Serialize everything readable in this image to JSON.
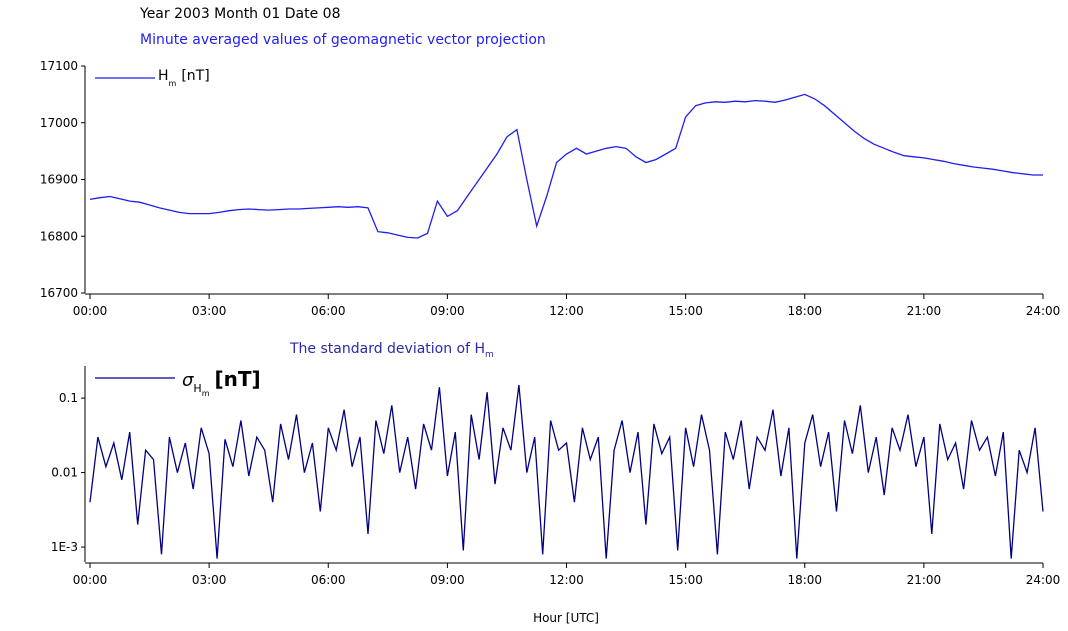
{
  "chart_data": [
    {
      "type": "line",
      "title": "Year 2003 Month 01 Date 08",
      "subtitle": "Minute averaged values of geomagnetic vector projection",
      "x": [
        0,
        0.25,
        0.5,
        0.75,
        1,
        1.25,
        1.5,
        1.75,
        2,
        2.25,
        2.5,
        2.75,
        3,
        3.25,
        3.5,
        3.75,
        4,
        4.25,
        4.5,
        4.75,
        5,
        5.25,
        5.5,
        5.75,
        6,
        6.25,
        6.5,
        6.75,
        7,
        7.25,
        7.5,
        7.75,
        8,
        8.25,
        8.5,
        8.75,
        9,
        9.25,
        9.5,
        9.75,
        10,
        10.25,
        10.5,
        10.75,
        11,
        11.25,
        11.5,
        11.75,
        12,
        12.25,
        12.5,
        12.75,
        13,
        13.25,
        13.5,
        13.75,
        14,
        14.25,
        14.5,
        14.75,
        15,
        15.25,
        15.5,
        15.75,
        16,
        16.25,
        16.5,
        16.75,
        17,
        17.25,
        17.5,
        17.75,
        18,
        18.25,
        18.5,
        18.75,
        19,
        19.25,
        19.5,
        19.75,
        20,
        20.25,
        20.5,
        20.75,
        21,
        21.25,
        21.5,
        21.75,
        22,
        22.25,
        22.5,
        22.75,
        23,
        23.25,
        23.5,
        23.75,
        24
      ],
      "series": [
        {
          "name": "H",
          "name_subscript": "m",
          "unit": "[nT]",
          "color": "#1f1ff0",
          "values": [
            16865,
            16868,
            16870,
            16866,
            16862,
            16860,
            16855,
            16850,
            16846,
            16842,
            16840,
            16840,
            16840,
            16842,
            16845,
            16847,
            16848,
            16847,
            16846,
            16847,
            16848,
            16848,
            16849,
            16850,
            16851,
            16852,
            16851,
            16852,
            16850,
            16808,
            16806,
            16802,
            16798,
            16797,
            16805,
            16862,
            16835,
            16845,
            16870,
            16895,
            16920,
            16945,
            16975,
            16988,
            16900,
            16818,
            16870,
            16930,
            16945,
            16955,
            16945,
            16950,
            16955,
            16958,
            16955,
            16940,
            16930,
            16935,
            16945,
            16955,
            17010,
            17030,
            17035,
            17037,
            17036,
            17038,
            17037,
            17039,
            17038,
            17036,
            17040,
            17045,
            17050,
            17042,
            17030,
            17015,
            17000,
            16985,
            16972,
            16962,
            16955,
            16948,
            16942,
            16940,
            16938,
            16935,
            16932,
            16928,
            16925,
            16922,
            16920,
            16918,
            16915,
            16912,
            16910,
            16908,
            16908
          ]
        }
      ],
      "xlim": [
        0,
        24
      ],
      "xticks": [
        {
          "value": 0,
          "label": "00:00"
        },
        {
          "value": 3,
          "label": "03:00"
        },
        {
          "value": 6,
          "label": "06:00"
        },
        {
          "value": 9,
          "label": "09:00"
        },
        {
          "value": 12,
          "label": "12:00"
        },
        {
          "value": 15,
          "label": "15:00"
        },
        {
          "value": 18,
          "label": "18:00"
        },
        {
          "value": 21,
          "label": "21:00"
        },
        {
          "value": 24,
          "label": "24:00"
        }
      ],
      "ylim": [
        16700,
        17100
      ],
      "yticks": [
        16700,
        16800,
        16900,
        17000,
        17100
      ],
      "log_scale": false
    },
    {
      "type": "line",
      "subtitle": "The standard deviation of H",
      "subtitle_subscript": "m",
      "xlabel": "Hour [UTC]",
      "x": [
        0,
        0.2,
        0.4,
        0.6,
        0.8,
        1,
        1.2,
        1.4,
        1.6,
        1.8,
        2,
        2.2,
        2.4,
        2.6,
        2.8,
        3,
        3.2,
        3.4,
        3.6,
        3.8,
        4,
        4.2,
        4.4,
        4.6,
        4.8,
        5,
        5.2,
        5.4,
        5.6,
        5.8,
        6,
        6.2,
        6.4,
        6.6,
        6.8,
        7,
        7.2,
        7.4,
        7.6,
        7.8,
        8,
        8.2,
        8.4,
        8.6,
        8.8,
        9,
        9.2,
        9.4,
        9.6,
        9.8,
        10,
        10.2,
        10.4,
        10.6,
        10.8,
        11,
        11.2,
        11.4,
        11.6,
        11.8,
        12,
        12.2,
        12.4,
        12.6,
        12.8,
        13,
        13.2,
        13.4,
        13.6,
        13.8,
        14,
        14.2,
        14.4,
        14.6,
        14.8,
        15,
        15.2,
        15.4,
        15.6,
        15.8,
        16,
        16.2,
        16.4,
        16.6,
        16.8,
        17,
        17.2,
        17.4,
        17.6,
        17.8,
        18,
        18.2,
        18.4,
        18.6,
        18.8,
        19,
        19.2,
        19.4,
        19.6,
        19.8,
        20,
        20.2,
        20.4,
        20.6,
        20.8,
        21,
        21.2,
        21.4,
        21.6,
        21.8,
        22,
        22.2,
        22.4,
        22.6,
        22.8,
        23,
        23.2,
        23.4,
        23.6,
        23.8,
        24
      ],
      "series": [
        {
          "name": "σ",
          "name_subscript": "H",
          "name_subsubscript": "m",
          "unit": "[nT]",
          "color": "#000080",
          "values": [
            0.004,
            0.03,
            0.012,
            0.025,
            0.008,
            0.035,
            0.002,
            0.02,
            0.015,
            0.0008,
            0.03,
            0.01,
            0.025,
            0.006,
            0.04,
            0.018,
            0.0007,
            0.028,
            0.012,
            0.05,
            0.009,
            0.03,
            0.02,
            0.004,
            0.045,
            0.015,
            0.06,
            0.01,
            0.025,
            0.003,
            0.04,
            0.02,
            0.07,
            0.012,
            0.03,
            0.0015,
            0.05,
            0.018,
            0.08,
            0.01,
            0.03,
            0.006,
            0.045,
            0.02,
            0.14,
            0.009,
            0.035,
            0.0009,
            0.06,
            0.015,
            0.12,
            0.007,
            0.04,
            0.02,
            0.15,
            0.01,
            0.03,
            0.0008,
            0.05,
            0.02,
            0.025,
            0.004,
            0.04,
            0.015,
            0.03,
            0.0007,
            0.02,
            0.05,
            0.01,
            0.035,
            0.002,
            0.045,
            0.018,
            0.03,
            0.0009,
            0.04,
            0.012,
            0.06,
            0.02,
            0.0008,
            0.035,
            0.015,
            0.05,
            0.006,
            0.03,
            0.02,
            0.07,
            0.009,
            0.04,
            0.0007,
            0.025,
            0.06,
            0.012,
            0.035,
            0.003,
            0.05,
            0.018,
            0.08,
            0.01,
            0.03,
            0.005,
            0.04,
            0.02,
            0.06,
            0.012,
            0.03,
            0.0015,
            0.045,
            0.015,
            0.025,
            0.006,
            0.05,
            0.02,
            0.03,
            0.009,
            0.035,
            0.0007,
            0.02,
            0.01,
            0.04,
            0.003
          ]
        }
      ],
      "xlim": [
        0,
        24
      ],
      "xticks": [
        {
          "value": 0,
          "label": "00:00"
        },
        {
          "value": 3,
          "label": "03:00"
        },
        {
          "value": 6,
          "label": "06:00"
        },
        {
          "value": 9,
          "label": "09:00"
        },
        {
          "value": 12,
          "label": "12:00"
        },
        {
          "value": 15,
          "label": "15:00"
        },
        {
          "value": 18,
          "label": "18:00"
        },
        {
          "value": 21,
          "label": "21:00"
        },
        {
          "value": 24,
          "label": "24:00"
        }
      ],
      "ylim": [
        0.00063,
        0.27
      ],
      "yticks": [
        {
          "value": 0.001,
          "label": "1E-3"
        },
        0.01,
        0.1
      ],
      "log_scale": true
    }
  ]
}
